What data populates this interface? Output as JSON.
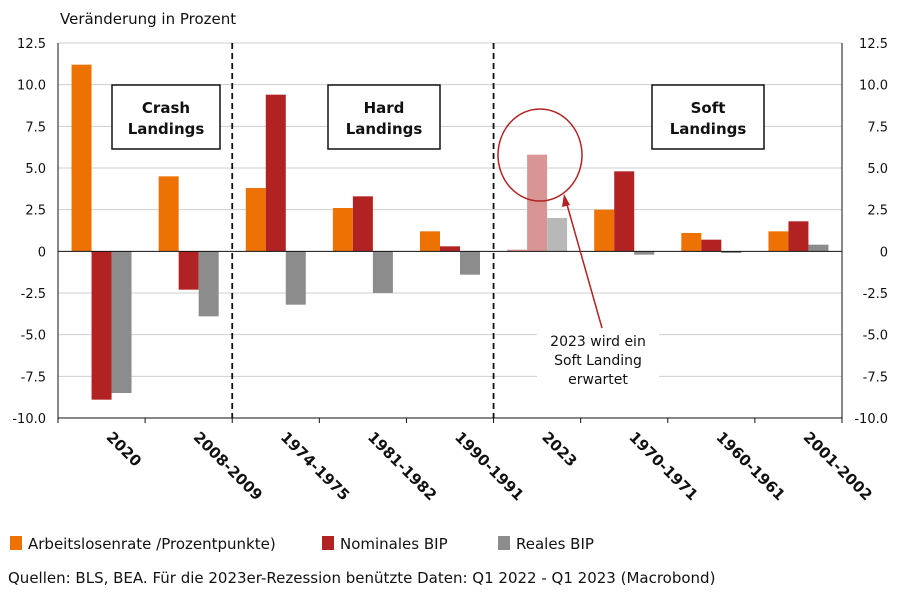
{
  "chart_data": {
    "type": "bar",
    "ylabel": "Veränderung in Prozent",
    "ylim": [
      -10,
      12.5
    ],
    "yticks": [
      "12.5",
      "10.0",
      "7.5",
      "5.0",
      "2.5",
      "0",
      "-2.5",
      "-5.0",
      "-7.5",
      "-10.0"
    ],
    "categories": [
      "2020",
      "2008-2009",
      "1974-1975",
      "1981-1982",
      "1990-1991",
      "2023",
      "1970-1971",
      "1960-1961",
      "2001-2002"
    ],
    "series": [
      {
        "name": "Arbeitslosenrate /Prozentpunkte)",
        "color": "#ee7203",
        "values": [
          11.2,
          4.5,
          3.8,
          2.6,
          1.2,
          0.1,
          2.5,
          1.1,
          1.2
        ]
      },
      {
        "name": "Nominales BIP",
        "color": "#b22222",
        "values": [
          -8.9,
          -2.3,
          9.4,
          3.3,
          0.3,
          5.8,
          4.8,
          0.7,
          1.8
        ]
      },
      {
        "name": "Reales BIP",
        "color": "#8c8c8c",
        "values": [
          -8.5,
          -3.9,
          -3.2,
          -2.5,
          -1.4,
          2.0,
          -0.2,
          -0.1,
          0.4
        ]
      }
    ],
    "highlighted_category": "2023",
    "highlight_colors": [
      "#d99594",
      "#d99594",
      "#b8b8b8"
    ],
    "group_labels": [
      {
        "line1": "Crash",
        "line2": "Landings"
      },
      {
        "line1": "Hard",
        "line2": "Landings"
      },
      {
        "line1": "Soft",
        "line2": "Landings"
      }
    ],
    "annotation": {
      "line1": "2023 wird ein",
      "line2": "Soft Landing",
      "line3": "erwartet"
    }
  },
  "source": "Quellen: BLS, BEA. Für die 2023er-Rezession benützte Daten: Q1 2022 - Q1 2023 (Macrobond)"
}
